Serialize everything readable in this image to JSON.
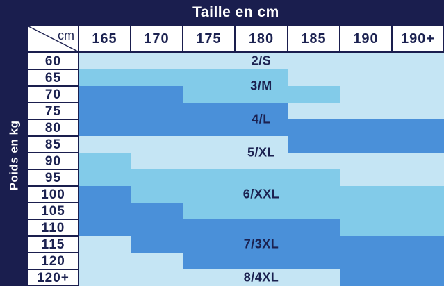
{
  "title": "Taille en cm",
  "y_axis_label": "Poids en kg",
  "corner_label": "cm",
  "theme": {
    "navy": "#1A1E4E",
    "cell_bg": "#FFFFFF",
    "text_dark": "#1B2150",
    "text_light": "#FFFFFF"
  },
  "shade_colors": {
    "L": "#C5E5F4",
    "M": "#82CBE9",
    "D": "#4A90D9"
  },
  "chart_data": {
    "type": "heatmap",
    "title": "Taille en cm",
    "xlabel": "Taille en cm",
    "ylabel": "Poids en kg",
    "x_categories": [
      "165",
      "170",
      "175",
      "180",
      "185",
      "190",
      "190+"
    ],
    "y_categories": [
      "60",
      "65",
      "70",
      "75",
      "80",
      "85",
      "90",
      "95",
      "100",
      "105",
      "110",
      "115",
      "120",
      "120+"
    ],
    "shade_legend": {
      "L": "light blue",
      "M": "medium blue",
      "D": "dark blue"
    },
    "cell_shades": [
      [
        "L",
        "L",
        "L",
        "L",
        "L",
        "L",
        "L"
      ],
      [
        "M",
        "M",
        "M",
        "M",
        "L",
        "L",
        "L"
      ],
      [
        "D",
        "D",
        "M",
        "M",
        "M",
        "L",
        "L"
      ],
      [
        "D",
        "D",
        "D",
        "D",
        "L",
        "L",
        "L"
      ],
      [
        "D",
        "D",
        "D",
        "D",
        "D",
        "D",
        "D"
      ],
      [
        "L",
        "L",
        "L",
        "L",
        "D",
        "D",
        "D"
      ],
      [
        "M",
        "L",
        "L",
        "L",
        "L",
        "L",
        "L"
      ],
      [
        "M",
        "M",
        "M",
        "M",
        "M",
        "L",
        "L"
      ],
      [
        "D",
        "M",
        "M",
        "M",
        "M",
        "M",
        "M"
      ],
      [
        "D",
        "D",
        "M",
        "M",
        "M",
        "M",
        "M"
      ],
      [
        "D",
        "D",
        "D",
        "D",
        "D",
        "M",
        "M"
      ],
      [
        "L",
        "D",
        "D",
        "D",
        "D",
        "D",
        "D"
      ],
      [
        "L",
        "L",
        "D",
        "D",
        "D",
        "D",
        "D"
      ],
      [
        "L",
        "L",
        "L",
        "L",
        "L",
        "D",
        "D"
      ]
    ],
    "size_zones": [
      {
        "label": "2/S",
        "row_center": 0
      },
      {
        "label": "3/M",
        "row_center": 1.5
      },
      {
        "label": "4/L",
        "row_center": 3.5
      },
      {
        "label": "5/XL",
        "row_center": 5.5
      },
      {
        "label": "6/XXL",
        "row_center": 8
      },
      {
        "label": "7/3XL",
        "row_center": 11
      },
      {
        "label": "8/4XL",
        "row_center": 13
      }
    ]
  }
}
